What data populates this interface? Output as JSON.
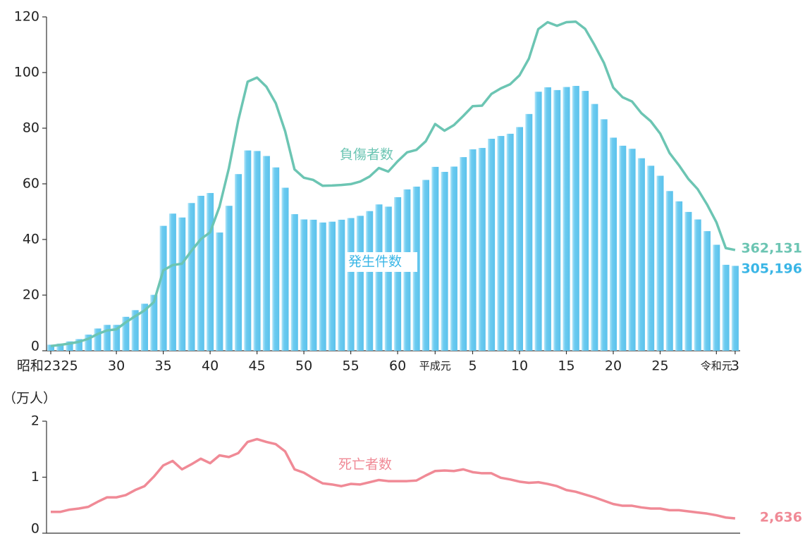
{
  "chart_data": [
    {
      "type": "bar",
      "categories": [
        "昭和23",
        null,
        "25",
        null,
        null,
        null,
        null,
        "30",
        null,
        null,
        null,
        null,
        "35",
        null,
        null,
        null,
        null,
        "40",
        null,
        null,
        null,
        null,
        "45",
        null,
        null,
        null,
        null,
        "50",
        null,
        null,
        null,
        null,
        "55",
        null,
        null,
        null,
        null,
        "60",
        null,
        null,
        null,
        "平成元",
        null,
        null,
        null,
        "5",
        null,
        null,
        null,
        null,
        "10",
        null,
        null,
        null,
        null,
        "15",
        null,
        null,
        null,
        null,
        "20",
        null,
        null,
        null,
        null,
        "25",
        null,
        null,
        null,
        null,
        null,
        "令和元",
        null,
        "3"
      ],
      "ylim": [
        0,
        120
      ],
      "yticks": [
        0,
        20,
        40,
        60,
        80,
        100,
        120
      ],
      "series": [
        {
          "name": "発生件数",
          "type": "bar",
          "color": "#6ccbf0",
          "end_label": "305,196",
          "values": [
            2.17,
            2.58,
            3.36,
            4.18,
            5.8,
            8.0,
            9.3,
            9.3,
            12.2,
            14.6,
            16.9,
            20.1,
            44.9,
            49.3,
            47.9,
            53.1,
            55.7,
            56.7,
            42.5,
            52.1,
            63.5,
            72.0,
            71.8,
            70.0,
            65.9,
            58.6,
            49.1,
            47.2,
            47.1,
            46.1,
            46.4,
            47.1,
            47.7,
            48.5,
            50.2,
            52.6,
            51.8,
            55.2,
            58.0,
            59.0,
            61.4,
            66.1,
            64.3,
            66.2,
            69.6,
            72.4,
            72.9,
            76.2,
            77.2,
            78.0,
            80.4,
            85.1,
            93.1,
            94.7,
            93.7,
            94.8,
            95.2,
            93.4,
            88.7,
            83.2,
            76.6,
            73.7,
            72.6,
            69.2,
            66.5,
            62.9,
            57.4,
            53.7,
            49.9,
            47.2,
            43.0,
            38.1,
            30.9,
            30.5196
          ]
        },
        {
          "name": "負傷者数",
          "type": "line",
          "color": "#6cc5b3",
          "end_label": "362,131",
          "values": [
            1.7,
            2.1,
            2.6,
            3.2,
            4.3,
            6.0,
            7.3,
            7.7,
            10.2,
            12.4,
            14.5,
            17.5,
            28.9,
            30.8,
            31.3,
            35.9,
            40.1,
            42.6,
            51.8,
            65.6,
            82.8,
            96.7,
            98.2,
            94.9,
            89.0,
            78.9,
            65.2,
            62.2,
            61.4,
            59.3,
            59.4,
            59.6,
            59.9,
            60.8,
            62.6,
            65.7,
            64.4,
            68.1,
            71.3,
            72.2,
            75.3,
            81.5,
            79.1,
            81.1,
            84.4,
            87.9,
            88.1,
            92.3,
            94.3,
            95.8,
            99.0,
            105.0,
            115.6,
            118.1,
            116.8,
            118.1,
            118.3,
            115.7,
            109.9,
            103.5,
            94.6,
            91.1,
            89.6,
            85.4,
            82.5,
            78.1,
            71.1,
            66.7,
            61.8,
            58.1,
            52.6,
            46.2,
            36.9,
            36.2131
          ]
        }
      ]
    },
    {
      "type": "line",
      "ylabel": "（万人）",
      "ylim": [
        0,
        2
      ],
      "yticks": [
        0,
        1,
        2
      ],
      "series": [
        {
          "name": "死亡者数",
          "color": "#f08a96",
          "end_label": "2,636",
          "values": [
            0.38,
            0.38,
            0.42,
            0.44,
            0.47,
            0.56,
            0.64,
            0.64,
            0.68,
            0.77,
            0.84,
            1.01,
            1.21,
            1.29,
            1.14,
            1.23,
            1.33,
            1.25,
            1.39,
            1.36,
            1.43,
            1.63,
            1.68,
            1.63,
            1.59,
            1.46,
            1.14,
            1.08,
            0.98,
            0.89,
            0.87,
            0.84,
            0.88,
            0.87,
            0.91,
            0.95,
            0.93,
            0.93,
            0.93,
            0.94,
            1.03,
            1.11,
            1.12,
            1.11,
            1.14,
            1.09,
            1.07,
            1.07,
            0.99,
            0.96,
            0.92,
            0.9,
            0.91,
            0.88,
            0.84,
            0.77,
            0.74,
            0.69,
            0.64,
            0.58,
            0.52,
            0.49,
            0.49,
            0.46,
            0.44,
            0.44,
            0.41,
            0.41,
            0.39,
            0.37,
            0.35,
            0.32,
            0.28,
            0.2636
          ]
        }
      ]
    }
  ]
}
